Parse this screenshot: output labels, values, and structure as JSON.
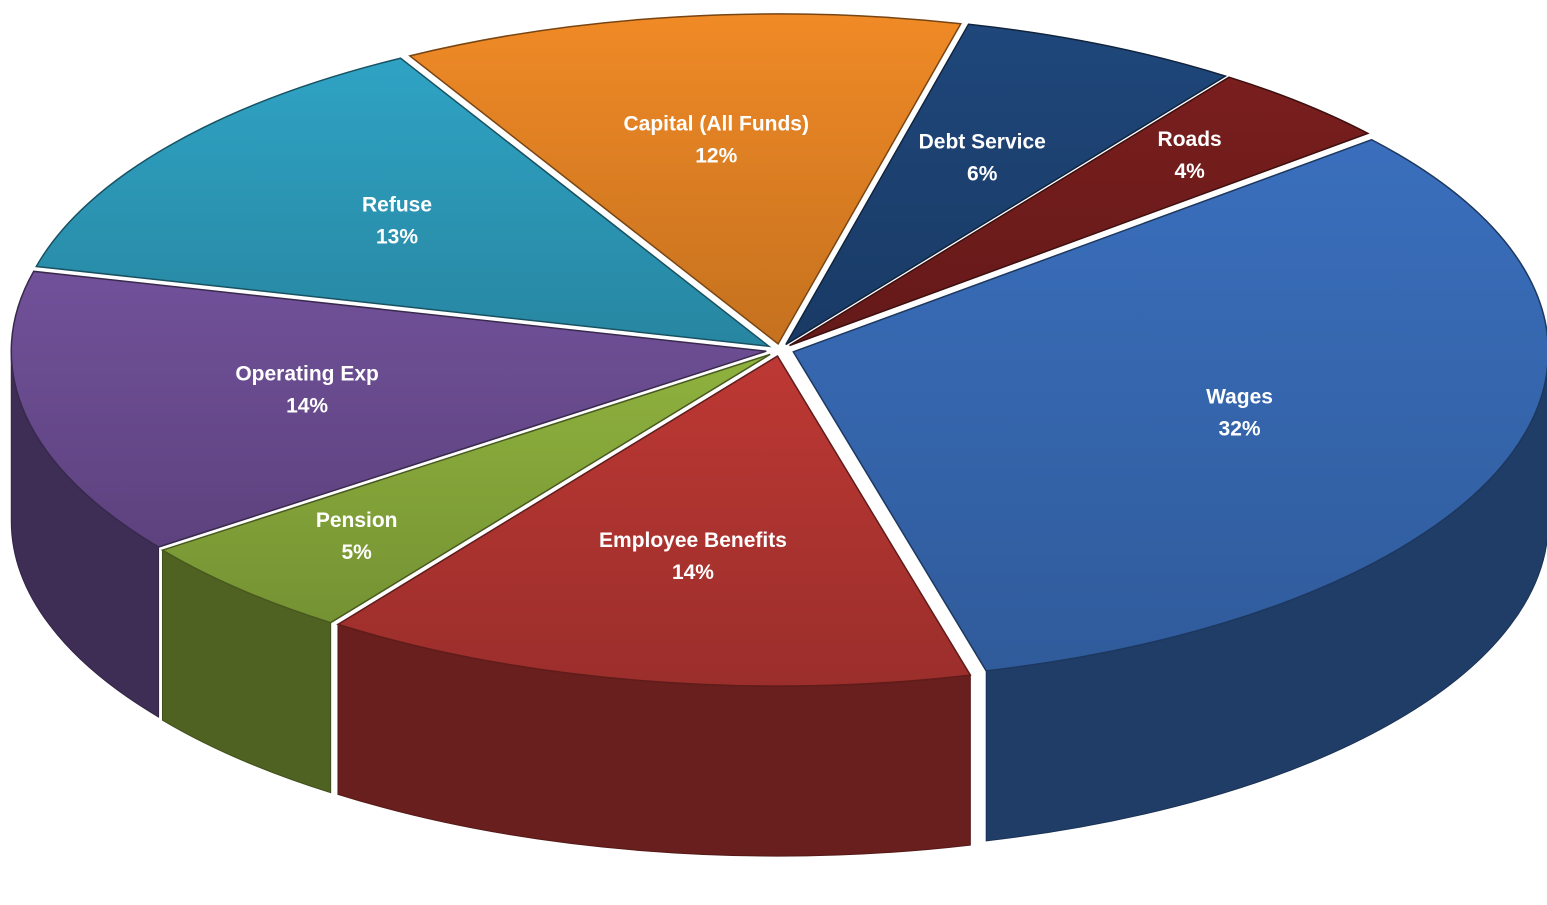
{
  "chart_data": {
    "type": "pie",
    "categories": [
      "Wages",
      "Employee Benefits",
      "Pension",
      "Operating Exp",
      "Refuse",
      "Capital (All Funds)",
      "Debt Service",
      "Roads"
    ],
    "values": [
      32,
      14,
      5,
      14,
      13,
      12,
      6,
      4
    ],
    "value_labels": [
      "32%",
      "14%",
      "5%",
      "14%",
      "13%",
      "12%",
      "6%",
      "4%"
    ],
    "colors": [
      "#3a6fbd",
      "#bd3834",
      "#8fb23e",
      "#71519a",
      "#2fa3c4",
      "#f08a26",
      "#1f477b",
      "#7a1e1e"
    ]
  }
}
